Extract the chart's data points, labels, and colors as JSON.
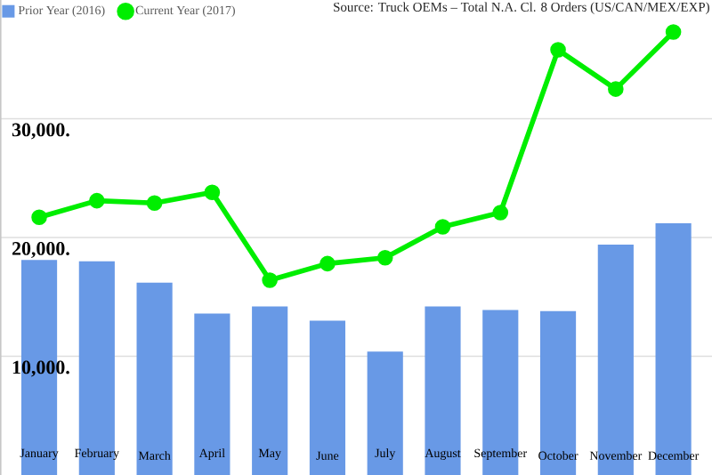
{
  "chart_data": {
    "type": "bar",
    "categories": [
      "January",
      "February",
      "March",
      "April",
      "May",
      "June",
      "July",
      "August",
      "September",
      "October",
      "November",
      "December"
    ],
    "series": [
      {
        "name": "Prior Year (2016)",
        "color": "#6899e6",
        "values": [
          18100,
          18000,
          16200,
          13600,
          14200,
          13000,
          10400,
          14200,
          13900,
          13800,
          19400,
          21200
        ]
      },
      {
        "name": "Current Year (2017)",
        "type": "line",
        "color": "#00ee00",
        "values": [
          21700,
          23100,
          22900,
          23800,
          16400,
          17800,
          18300,
          20900,
          22100,
          35800,
          32500,
          37300
        ]
      }
    ],
    "ylim": [
      0,
      40000
    ],
    "yticks": [
      {
        "value": 10000,
        "label": "10,000."
      },
      {
        "value": 20000,
        "label": "20,000."
      },
      {
        "value": 30000,
        "label": "30,000."
      }
    ],
    "grid": "y",
    "legend": "top left",
    "marker": "circle",
    "annotations": [
      "Source: Truck OEMs – Total N.A. Cl. 8 Orders (US/CAN/MEX/EXP)"
    ]
  }
}
